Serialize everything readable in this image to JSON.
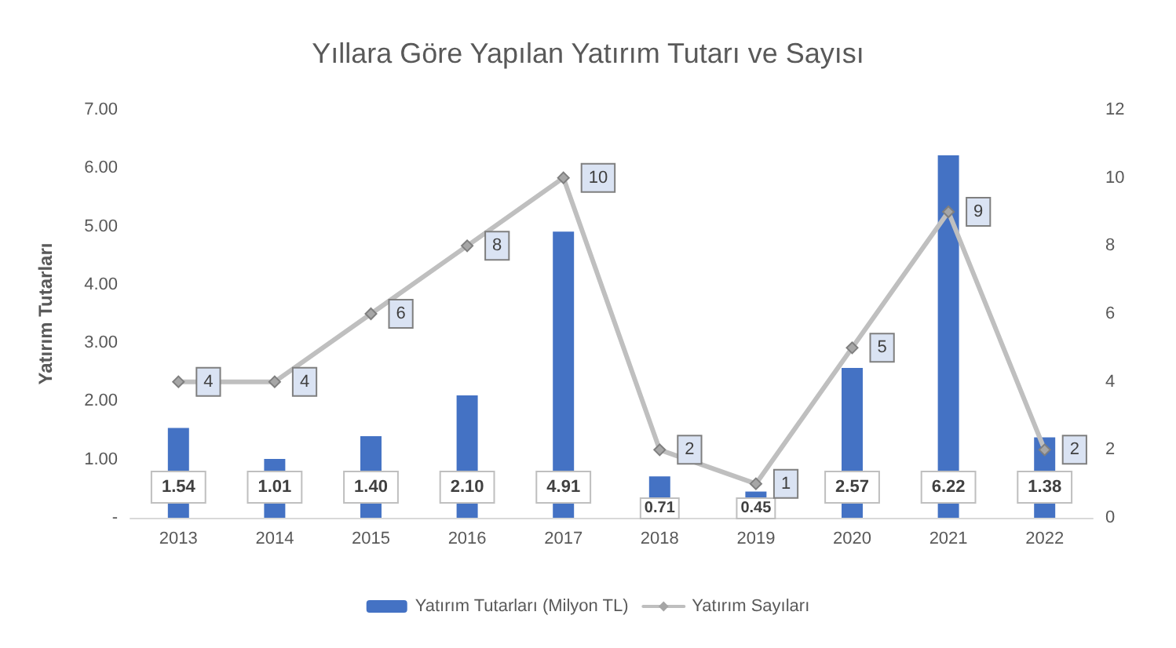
{
  "chart_data": {
    "type": "bar",
    "title": "Yıllara Göre Yapılan Yatırım Tutarı ve Sayısı",
    "ylabel": "Yatırım Tutarları",
    "categories": [
      "2013",
      "2014",
      "2015",
      "2016",
      "2017",
      "2018",
      "2019",
      "2020",
      "2021",
      "2022"
    ],
    "series": [
      {
        "name": "Yatırım Tutarları (Milyon TL)",
        "color": "#4472c4",
        "values": [
          1.54,
          1.01,
          1.4,
          2.1,
          4.91,
          0.71,
          0.45,
          2.57,
          6.22,
          1.38
        ],
        "value_labels": [
          "1.54",
          "1.01",
          "1.40",
          "2.10",
          "4.91",
          "0.71",
          "0.45",
          "2.57",
          "6.22",
          "1.38"
        ]
      },
      {
        "name": "Yatırım Sayıları",
        "type": "line",
        "axis": "y2",
        "color": "#bfbfbf",
        "marker": "diamond",
        "values": [
          4,
          4,
          6,
          8,
          10,
          2,
          1,
          5,
          9,
          2
        ],
        "value_labels": [
          "4",
          "4",
          "6",
          "8",
          "10",
          "2",
          "1",
          "5",
          "9",
          "2"
        ]
      }
    ],
    "ylim": [
      0,
      7
    ],
    "yticks": [
      {
        "value": 0,
        "label": "-"
      },
      {
        "value": 1,
        "label": "1.00"
      },
      {
        "value": 2,
        "label": "2.00"
      },
      {
        "value": 3,
        "label": "3.00"
      },
      {
        "value": 4,
        "label": "4.00"
      },
      {
        "value": 5,
        "label": "5.00"
      },
      {
        "value": 6,
        "label": "6.00"
      },
      {
        "value": 7,
        "label": "7.00"
      }
    ],
    "y2lim": [
      0,
      12
    ],
    "y2ticks": [
      0,
      2,
      4,
      6,
      8,
      10,
      12
    ],
    "legend": "bottom",
    "grid": false
  }
}
